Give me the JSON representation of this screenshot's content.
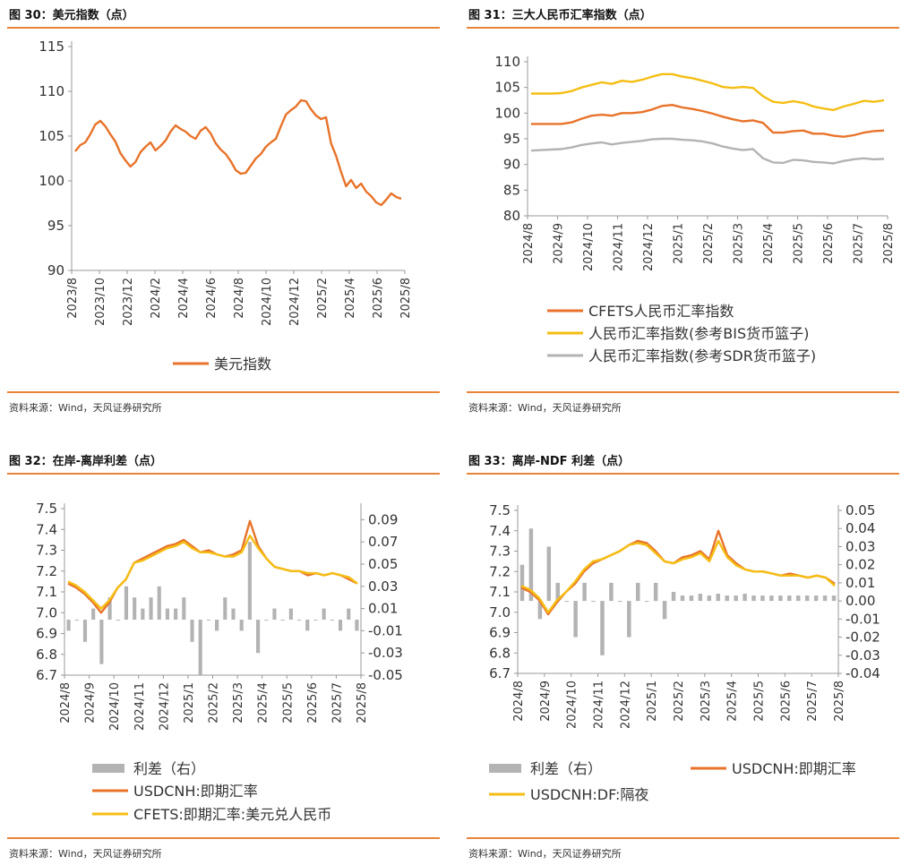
{
  "source_text": "资料来源：Wind，天风证券研究所",
  "colors": {
    "orange": "#E8732A",
    "yellow": "#F5BE14",
    "gray": "#B3B3B3",
    "axis": "#999999"
  },
  "chart_data": [
    {
      "id": "fig30",
      "title": "图 30：美元指数（点）",
      "type": "line",
      "x_tick_labels": [
        "2023/8",
        "2023/10",
        "2023/12",
        "2024/2",
        "2024/4",
        "2024/6",
        "2024/8",
        "2024/10",
        "2024/12",
        "2025/2",
        "2025/4",
        "2025/6",
        "2025/8"
      ],
      "ylim": [
        90,
        115
      ],
      "y_ticks": [
        90,
        95,
        100,
        105,
        110,
        115
      ],
      "series": [
        {
          "name": "美元指数",
          "color": "#E8732A",
          "values": [
            103.3,
            104.0,
            104.3,
            105.2,
            106.3,
            106.7,
            106.1,
            105.2,
            104.4,
            103.1,
            102.3,
            101.6,
            102.1,
            103.2,
            103.8,
            104.3,
            103.4,
            103.9,
            104.5,
            105.5,
            106.2,
            105.8,
            105.5,
            105.0,
            104.7,
            105.6,
            106.0,
            105.3,
            104.2,
            103.5,
            103.0,
            102.2,
            101.2,
            100.8,
            100.9,
            101.7,
            102.5,
            103.0,
            103.8,
            104.3,
            104.7,
            106.1,
            107.4,
            107.9,
            108.3,
            109.0,
            108.9,
            108.0,
            107.3,
            106.9,
            107.1,
            104.2,
            102.8,
            101.0,
            99.4,
            100.1,
            99.2,
            99.7,
            98.8,
            98.3,
            97.6,
            97.3,
            97.9,
            98.6,
            98.2,
            98.0
          ]
        }
      ],
      "legend": [
        "美元指数"
      ]
    },
    {
      "id": "fig31",
      "title": "图 31：三大人民币汇率指数（点）",
      "type": "line",
      "x_tick_labels": [
        "2024/8",
        "2024/9",
        "2024/10",
        "2024/11",
        "2024/12",
        "2025/1",
        "2025/2",
        "2025/3",
        "2025/4",
        "2025/5",
        "2025/6",
        "2025/7",
        "2025/8"
      ],
      "ylim": [
        80,
        110
      ],
      "y_ticks": [
        80,
        85,
        90,
        95,
        100,
        105,
        110
      ],
      "series": [
        {
          "name": "CFETS人民币汇率指数",
          "color": "#E8732A",
          "values": [
            97.9,
            97.9,
            97.9,
            97.9,
            98.2,
            98.9,
            99.5,
            99.7,
            99.5,
            100.0,
            100.0,
            100.2,
            100.7,
            101.4,
            101.6,
            101.1,
            100.8,
            100.4,
            99.9,
            99.3,
            98.8,
            98.4,
            98.6,
            98.1,
            96.2,
            96.2,
            96.5,
            96.6,
            96.0,
            96.0,
            95.6,
            95.4,
            95.7,
            96.2,
            96.5,
            96.6
          ]
        },
        {
          "name": "人民币汇率指数(参考BIS货币篮子)",
          "color": "#F5BE14",
          "values": [
            103.8,
            103.8,
            103.8,
            103.9,
            104.3,
            105.0,
            105.5,
            106.0,
            105.7,
            106.3,
            106.1,
            106.5,
            107.1,
            107.6,
            107.6,
            107.1,
            106.8,
            106.3,
            105.8,
            105.1,
            104.9,
            105.1,
            104.9,
            103.3,
            102.2,
            102.0,
            102.3,
            102.0,
            101.3,
            100.9,
            100.6,
            101.3,
            101.8,
            102.4,
            102.2,
            102.5
          ]
        },
        {
          "name": "人民币汇率指数(参考SDR货币篮子)",
          "color": "#B3B3B3",
          "values": [
            92.7,
            92.8,
            92.9,
            93.0,
            93.3,
            93.8,
            94.1,
            94.3,
            93.9,
            94.2,
            94.4,
            94.6,
            94.9,
            95.0,
            95.0,
            94.8,
            94.7,
            94.5,
            94.1,
            93.5,
            93.1,
            92.8,
            93.0,
            91.2,
            90.4,
            90.3,
            90.9,
            90.8,
            90.5,
            90.4,
            90.2,
            90.7,
            91.0,
            91.2,
            91.0,
            91.1
          ]
        }
      ],
      "legend": [
        "CFETS人民币汇率指数",
        "人民币汇率指数(参考BIS货币篮子)",
        "人民币汇率指数(参考SDR货币篮子)"
      ]
    },
    {
      "id": "fig32",
      "title": "图 32：在岸-离岸利差（点）",
      "type": "line+bar",
      "x_tick_labels": [
        "2024/8",
        "2024/9",
        "2024/10",
        "2024/11",
        "2024/12",
        "2025/1",
        "2025/2",
        "2025/3",
        "2025/4",
        "2025/5",
        "2025/6",
        "2025/7",
        "2025/8"
      ],
      "ylim": [
        6.7,
        7.5
      ],
      "y_ticks": [
        6.7,
        6.8,
        6.9,
        7.0,
        7.1,
        7.2,
        7.3,
        7.4,
        7.5
      ],
      "y2lim": [
        -0.05,
        0.1
      ],
      "y2_ticks": [
        -0.05,
        -0.03,
        -0.01,
        0.01,
        0.03,
        0.05,
        0.07,
        0.09
      ],
      "series": [
        {
          "name": "USDCNH:即期汇率",
          "color": "#E8732A",
          "values": [
            7.14,
            7.12,
            7.09,
            7.05,
            7.0,
            7.05,
            7.12,
            7.16,
            7.24,
            7.26,
            7.28,
            7.3,
            7.32,
            7.33,
            7.35,
            7.32,
            7.29,
            7.3,
            7.28,
            7.27,
            7.28,
            7.3,
            7.44,
            7.32,
            7.26,
            7.22,
            7.21,
            7.2,
            7.2,
            7.18,
            7.19,
            7.18,
            7.19,
            7.18,
            7.16,
            7.14
          ]
        },
        {
          "name": "CFETS:即期汇率:美元兑人民币",
          "color": "#F5BE14",
          "values": [
            7.15,
            7.13,
            7.1,
            7.06,
            7.02,
            7.06,
            7.12,
            7.16,
            7.24,
            7.25,
            7.27,
            7.29,
            7.31,
            7.32,
            7.34,
            7.31,
            7.29,
            7.29,
            7.28,
            7.27,
            7.27,
            7.29,
            7.37,
            7.31,
            7.26,
            7.22,
            7.21,
            7.2,
            7.2,
            7.19,
            7.19,
            7.18,
            7.19,
            7.18,
            7.17,
            7.14
          ]
        },
        {
          "name": "利差（右）",
          "color": "#B3B3B3",
          "axis": "right",
          "values": [
            -0.01,
            0.0,
            -0.02,
            0.01,
            -0.04,
            0.02,
            0.0,
            0.03,
            0.02,
            0.01,
            0.02,
            0.03,
            0.01,
            0.01,
            0.02,
            -0.02,
            -0.05,
            0.0,
            -0.01,
            0.02,
            0.01,
            -0.01,
            0.07,
            -0.03,
            0.0,
            0.01,
            0.0,
            0.01,
            0.0,
            -0.01,
            0.0,
            0.01,
            0.0,
            -0.01,
            0.01,
            -0.01
          ]
        }
      ],
      "legend": [
        "利差（右）",
        "USDCNH:即期汇率",
        "CFETS:即期汇率:美元兑人民币"
      ]
    },
    {
      "id": "fig33",
      "title": "图 33：离岸-NDF 利差（点）",
      "type": "line+bar",
      "x_tick_labels": [
        "2024/8",
        "2024/9",
        "2024/10",
        "2024/11",
        "2024/12",
        "2025/1",
        "2025/2",
        "2025/3",
        "2025/4",
        "2025/5",
        "2025/6",
        "2025/7",
        "2025/8"
      ],
      "ylim": [
        6.7,
        7.5
      ],
      "y_ticks": [
        6.7,
        6.8,
        6.9,
        7.0,
        7.1,
        7.2,
        7.3,
        7.4,
        7.5
      ],
      "y2lim": [
        -0.04,
        0.05
      ],
      "y2_ticks": [
        -0.04,
        -0.03,
        -0.02,
        -0.01,
        0.0,
        0.01,
        0.02,
        0.03,
        0.04,
        0.05
      ],
      "series": [
        {
          "name": "USDCNH:即期汇率",
          "color": "#E8732A",
          "values": [
            7.12,
            7.1,
            7.06,
            6.99,
            7.05,
            7.1,
            7.14,
            7.2,
            7.24,
            7.26,
            7.28,
            7.3,
            7.33,
            7.35,
            7.34,
            7.3,
            7.25,
            7.24,
            7.27,
            7.28,
            7.3,
            7.26,
            7.4,
            7.28,
            7.24,
            7.21,
            7.2,
            7.2,
            7.19,
            7.18,
            7.19,
            7.18,
            7.17,
            7.18,
            7.17,
            7.14
          ]
        },
        {
          "name": "USDCNH:DF:隔夜",
          "color": "#F5BE14",
          "values": [
            7.13,
            7.11,
            7.07,
            7.0,
            7.06,
            7.1,
            7.15,
            7.21,
            7.25,
            7.26,
            7.28,
            7.3,
            7.33,
            7.34,
            7.33,
            7.29,
            7.25,
            7.24,
            7.26,
            7.27,
            7.29,
            7.25,
            7.35,
            7.27,
            7.23,
            7.21,
            7.2,
            7.2,
            7.19,
            7.18,
            7.18,
            7.18,
            7.17,
            7.18,
            7.17,
            7.13
          ]
        },
        {
          "name": "利差（右）",
          "color": "#B3B3B3",
          "axis": "right",
          "values": [
            0.02,
            0.04,
            -0.01,
            0.03,
            0.01,
            0.0,
            -0.02,
            0.01,
            0.0,
            -0.03,
            0.01,
            0.0,
            -0.02,
            0.01,
            0.0,
            0.01,
            -0.01,
            0.005,
            0.003,
            0.003,
            0.004,
            0.003,
            0.004,
            0.003,
            0.003,
            0.004,
            0.003,
            0.003,
            0.003,
            0.003,
            0.003,
            0.003,
            0.003,
            0.003,
            0.003,
            0.003
          ]
        }
      ],
      "legend": [
        "利差（右）",
        "USDCNH:即期汇率",
        "USDCNH:DF:隔夜"
      ]
    }
  ]
}
